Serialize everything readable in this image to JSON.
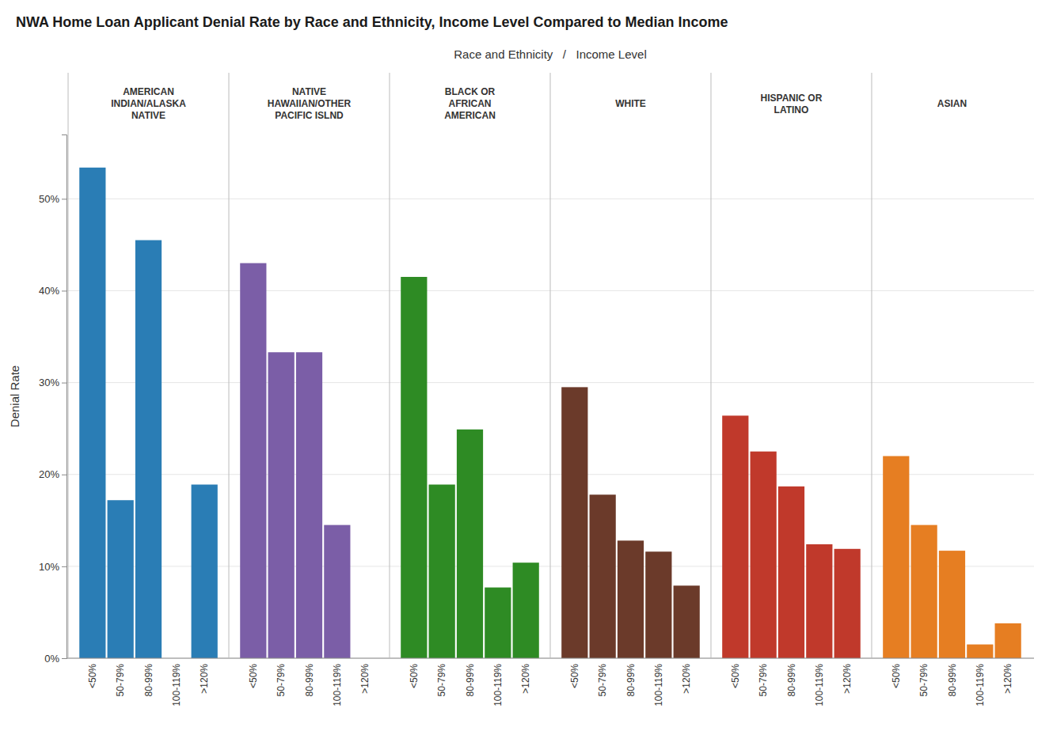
{
  "chart_data": {
    "type": "bar",
    "title": "NWA Home Loan Applicant Denial Rate by Race and Ethnicity, Income Level Compared to Median Income",
    "xlabel": "Race and Ethnicity   /   Income Level",
    "ylabel": "Denial Rate",
    "categories": [
      "<50%",
      "50-79%",
      "80-99%",
      "100-119%",
      ">120%"
    ],
    "series": [
      {
        "name": "AMERICAN\nINDIAN/ALASKA\nNATIVE",
        "color": "#2a7db5",
        "values": [
          0.534,
          0.172,
          0.455,
          null,
          0.189
        ]
      },
      {
        "name": "NATIVE\nHAWAIIAN/OTHER\nPACIFIC ISLND",
        "color": "#7b5ea7",
        "values": [
          0.43,
          0.333,
          0.333,
          0.145,
          null
        ]
      },
      {
        "name": "BLACK OR\nAFRICAN\nAMERICAN",
        "color": "#2e8b24",
        "values": [
          0.415,
          0.189,
          0.249,
          0.077,
          0.104
        ]
      },
      {
        "name": "WHITE",
        "color": "#6b3a2a",
        "values": [
          0.295,
          0.178,
          0.128,
          0.116,
          0.079
        ]
      },
      {
        "name": "HISPANIC OR\nLATINO",
        "color": "#c0392b",
        "values": [
          0.264,
          0.225,
          0.187,
          0.124,
          0.119
        ]
      },
      {
        "name": "ASIAN",
        "color": "#e67e22",
        "values": [
          0.22,
          0.145,
          0.117,
          0.015,
          0.038
        ]
      }
    ],
    "ylim": [
      0,
      0.57
    ],
    "yticks": [
      {
        "value": 0.0,
        "label": "0%"
      },
      {
        "value": 0.1,
        "label": "10%"
      },
      {
        "value": 0.2,
        "label": "20%"
      },
      {
        "value": 0.3,
        "label": "30%"
      },
      {
        "value": 0.4,
        "label": "40%"
      },
      {
        "value": 0.5,
        "label": "50%"
      }
    ],
    "grid": true
  }
}
